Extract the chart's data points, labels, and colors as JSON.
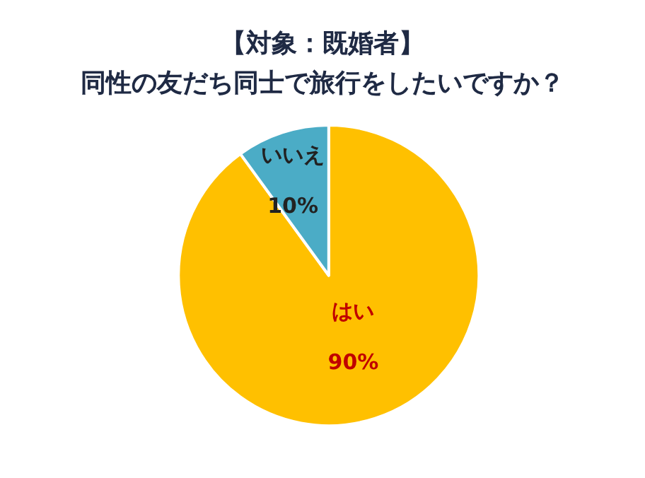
{
  "chart_data": {
    "type": "pie",
    "title": "【対象：既婚者】",
    "subtitle": "同性の友だち同士で旅行をしたいですか？",
    "categories": [
      "はい",
      "いいえ"
    ],
    "values": [
      90,
      10
    ],
    "value_labels": [
      "90%",
      "10%"
    ],
    "colors": [
      "#ffc000",
      "#4bacc6"
    ],
    "data_labels": true,
    "legend": false
  }
}
